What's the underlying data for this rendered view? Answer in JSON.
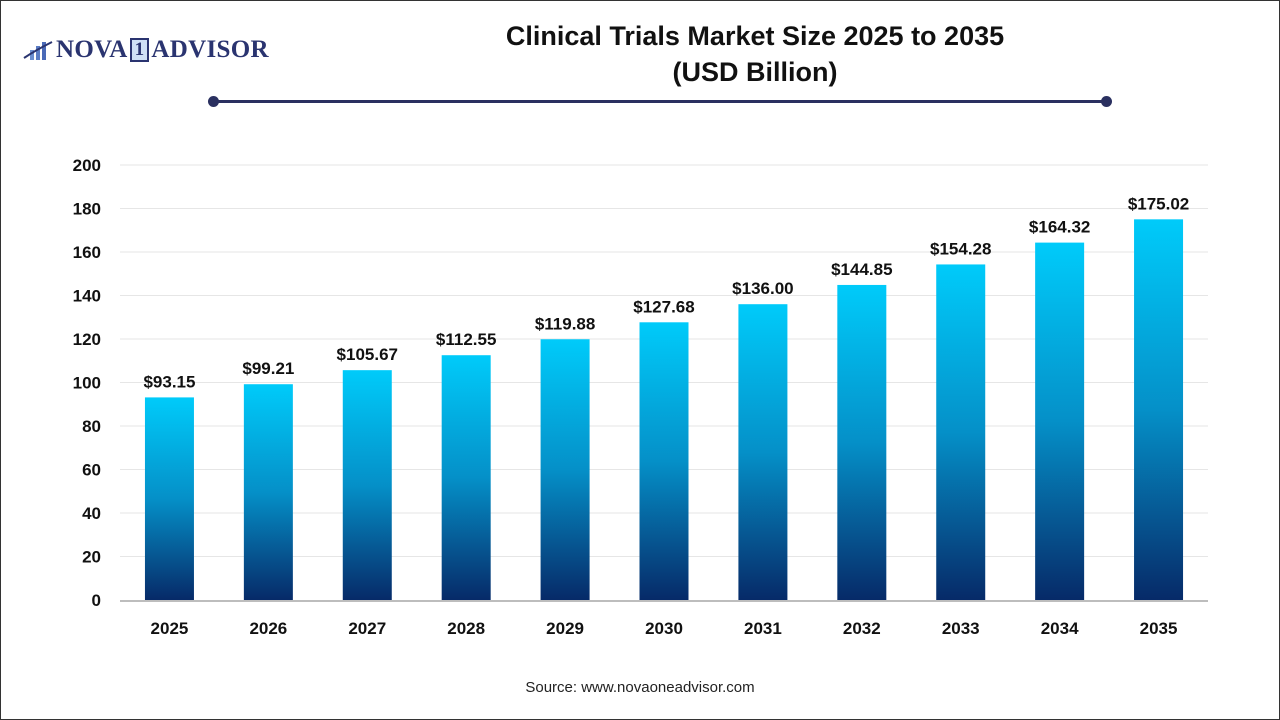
{
  "header": {
    "logo_text": "NOVA 1 ADVISOR",
    "title_line1": "Clinical Trials Market Size 2025 to 2035",
    "title_line2": "(USD Billion)"
  },
  "source": "Source: www.novaoneadvisor.com",
  "colors": {
    "bar_top": "#00cbfa",
    "bar_bottom": "#062a68",
    "title_rule": "#2a3060"
  },
  "chart_data": {
    "type": "bar",
    "title": "Clinical Trials Market Size 2025 to 2035 (USD Billion)",
    "xlabel": "",
    "ylabel": "",
    "ylim": [
      0,
      200
    ],
    "yticks": [
      0,
      20,
      40,
      60,
      80,
      100,
      120,
      140,
      160,
      180,
      200
    ],
    "grid": true,
    "categories": [
      "2025",
      "2026",
      "2027",
      "2028",
      "2029",
      "2030",
      "2031",
      "2032",
      "2033",
      "2034",
      "2035"
    ],
    "values": [
      93.15,
      99.21,
      105.67,
      112.55,
      119.88,
      127.68,
      136.0,
      144.85,
      154.28,
      164.32,
      175.02
    ],
    "data_labels": [
      "$93.15",
      "$99.21",
      "$105.67",
      "$112.55",
      "$119.88",
      "$127.68",
      "$136.00",
      "$144.85",
      "$154.28",
      "$164.32",
      "$175.02"
    ]
  }
}
